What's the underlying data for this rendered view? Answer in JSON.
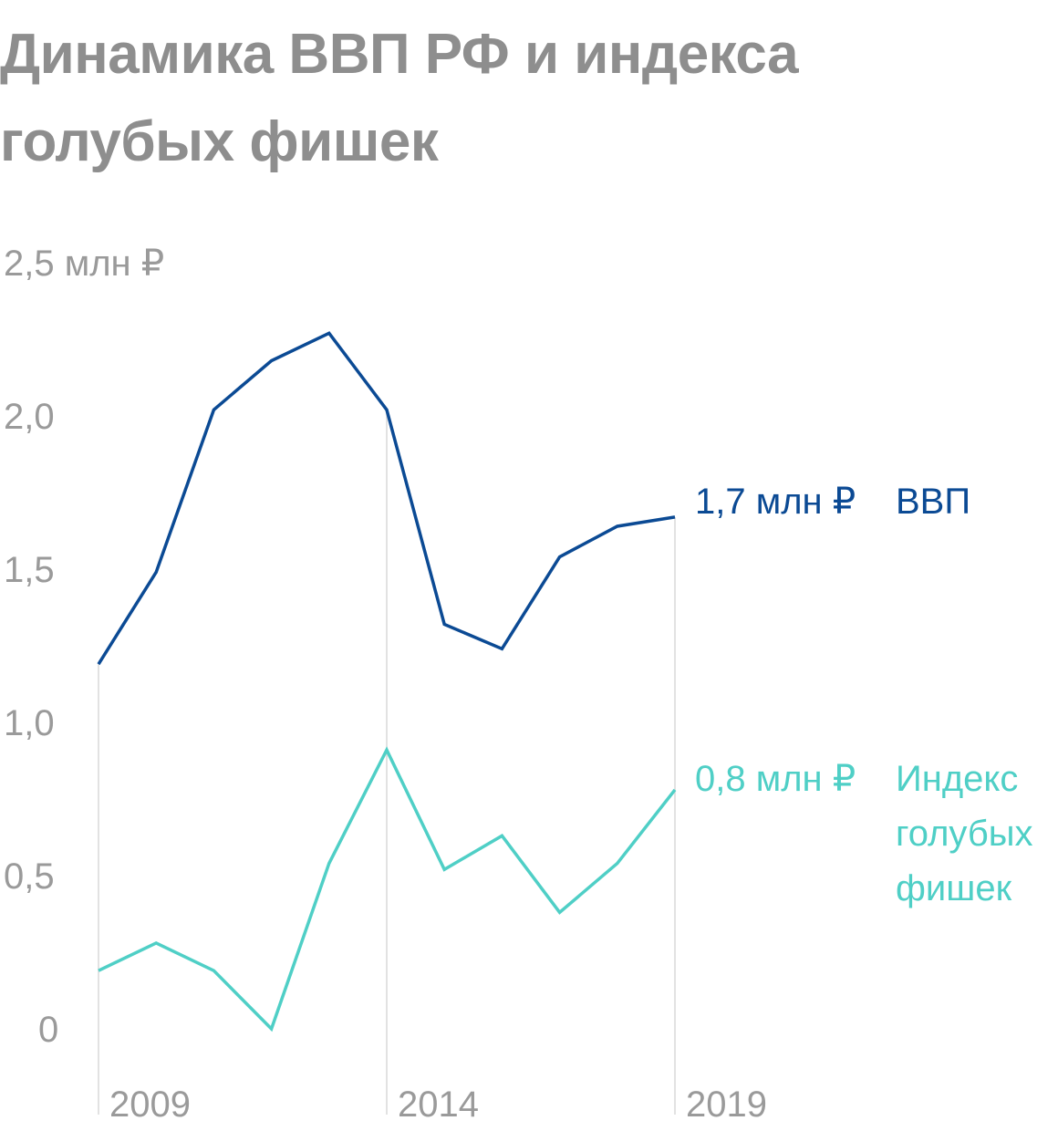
{
  "title": "Динамика ВВП РФ и индекса голубых фишек",
  "colors": {
    "gdp": "#0b4a94",
    "index": "#4fcfc6",
    "axis_text": "#9a9a9a",
    "gridline": "#d9d9d9",
    "title": "#8e8e8e"
  },
  "chart_data": {
    "type": "line",
    "title": "Динамика ВВП РФ и индекса голубых фишек",
    "x": [
      2009,
      2010,
      2011,
      2012,
      2013,
      2014,
      2015,
      2016,
      2017,
      2018,
      2019
    ],
    "ylim": [
      0,
      2.5
    ],
    "yticks": [
      0,
      0.5,
      1.0,
      1.5,
      2.0,
      2.5
    ],
    "ytick_labels": [
      "0",
      "0,5",
      "1,0",
      "1,5",
      "2,0",
      "2,5 млн ₽"
    ],
    "xticks": [
      2009,
      2014,
      2019
    ],
    "xtick_labels": [
      "2009",
      "2014",
      "2019"
    ],
    "grid": "vertical lines at 2009, 2014, 2019",
    "series": [
      {
        "name": "ВВП",
        "key": "gdp",
        "end_label": "1,7 млн ₽",
        "values": [
          1.19,
          1.49,
          2.02,
          2.18,
          2.27,
          2.02,
          1.32,
          1.24,
          1.54,
          1.64,
          1.67
        ]
      },
      {
        "name": "Индекс голубых фишек",
        "key": "index",
        "end_label": "0,8 млн ₽",
        "values": [
          0.19,
          0.28,
          0.19,
          0.0,
          0.54,
          0.91,
          0.52,
          0.63,
          0.38,
          0.54,
          0.78
        ]
      }
    ]
  }
}
